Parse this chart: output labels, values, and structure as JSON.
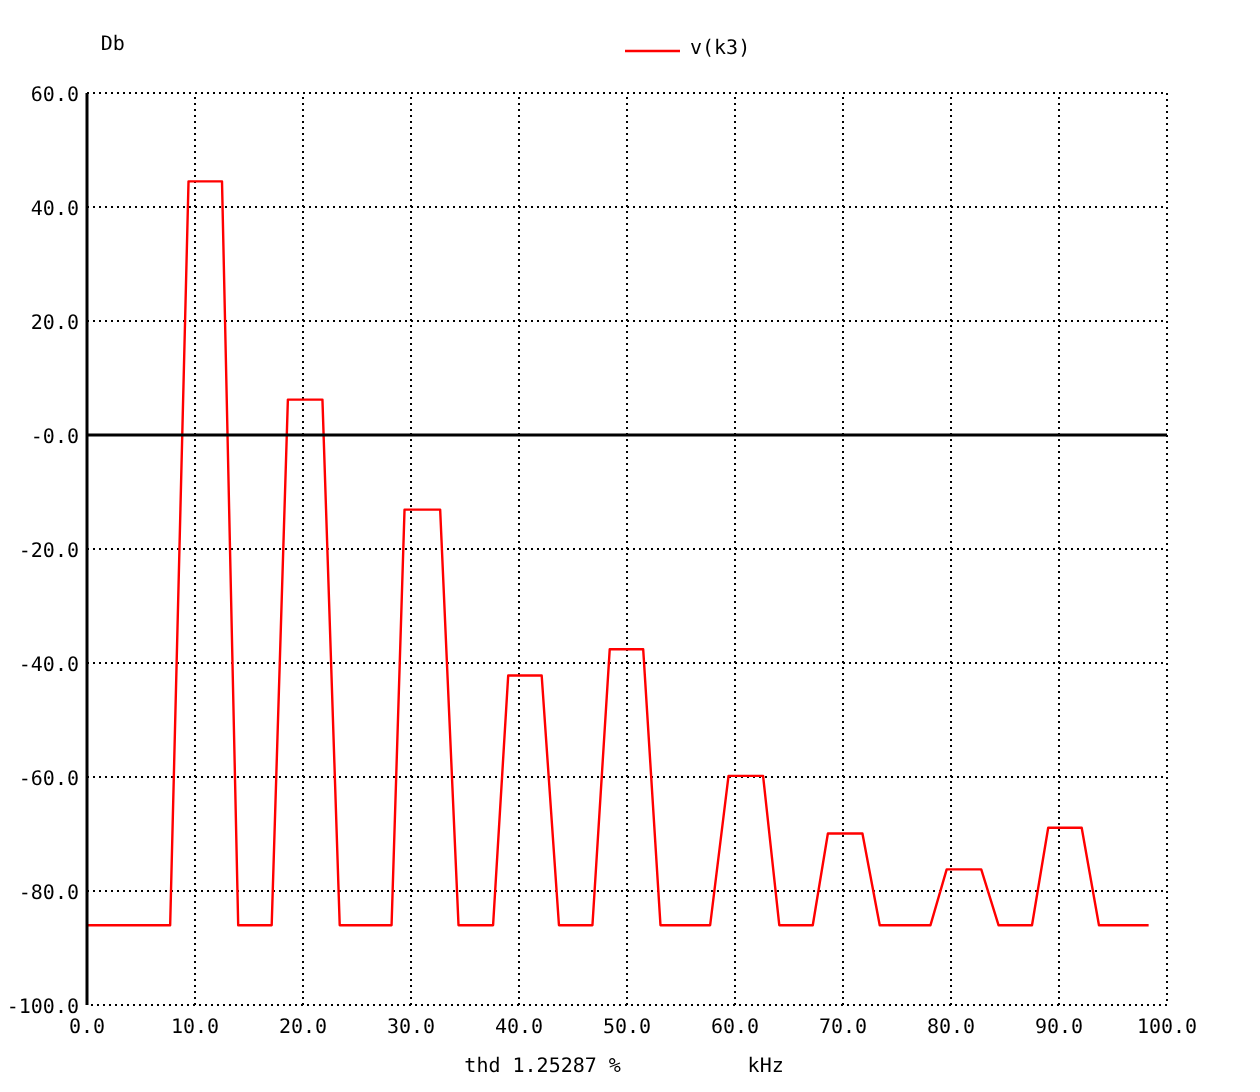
{
  "chart_data": {
    "type": "line",
    "xlabel": "kHz",
    "ylabel": "Db",
    "annotations": [
      "thd 1.25287 %"
    ],
    "series": [
      {
        "name": "v(k3)",
        "color": "#ff0000",
        "x": [
          0,
          7.7,
          9.4,
          12.5,
          14.0,
          17.1,
          18.6,
          21.8,
          23.4,
          28.2,
          29.4,
          32.7,
          34.4,
          37.6,
          39.0,
          42.1,
          43.7,
          46.8,
          48.4,
          51.5,
          53.1,
          57.7,
          59.4,
          62.6,
          64.1,
          67.2,
          68.6,
          71.8,
          73.4,
          78.1,
          79.6,
          82.8,
          84.4,
          87.5,
          89.0,
          92.1,
          93.7,
          98.3
        ],
        "values": [
          -86,
          -86,
          44.5,
          44.5,
          -86,
          -86,
          6.2,
          6.2,
          -86,
          -86,
          -13.1,
          -13.1,
          -86,
          -86,
          -42.2,
          -42.2,
          -86,
          -86,
          -37.6,
          -37.6,
          -86,
          -86,
          -59.8,
          -59.8,
          -86,
          -86,
          -69.9,
          -69.9,
          -86,
          -86,
          -76.2,
          -76.2,
          -86,
          -86,
          -68.9,
          -68.9,
          -86,
          -86
        ]
      }
    ],
    "xlim": [
      0,
      100
    ],
    "ylim": [
      -100,
      60
    ],
    "xticks": [
      {
        "value": 0,
        "label": "0.0"
      },
      {
        "value": 10,
        "label": "10.0"
      },
      {
        "value": 20,
        "label": "20.0"
      },
      {
        "value": 30,
        "label": "30.0"
      },
      {
        "value": 40,
        "label": "40.0"
      },
      {
        "value": 50,
        "label": "50.0"
      },
      {
        "value": 60,
        "label": "60.0"
      },
      {
        "value": 70,
        "label": "70.0"
      },
      {
        "value": 80,
        "label": "80.0"
      },
      {
        "value": 90,
        "label": "90.0"
      },
      {
        "value": 100,
        "label": "100.0"
      }
    ],
    "yticks": [
      {
        "value": -100,
        "label": "-100.0"
      },
      {
        "value": -80,
        "label": "-80.0"
      },
      {
        "value": -60,
        "label": "-60.0"
      },
      {
        "value": -40,
        "label": "-40.0"
      },
      {
        "value": -20,
        "label": "-20.0"
      },
      {
        "value": 0,
        "label": "-0.0"
      },
      {
        "value": 20,
        "label": "20.0"
      },
      {
        "value": 40,
        "label": "40.0"
      },
      {
        "value": 60,
        "label": "60.0"
      }
    ],
    "ref_lines": [
      {
        "axis": "y",
        "value": 0,
        "color": "#000000"
      }
    ],
    "grid": true,
    "legend": "top"
  }
}
